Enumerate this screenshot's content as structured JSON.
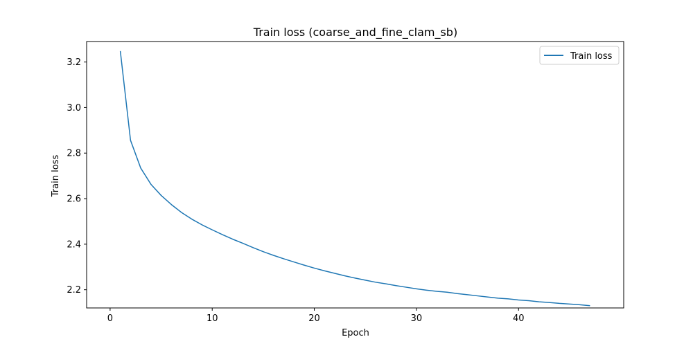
{
  "chart_data": {
    "type": "line",
    "title": "Train loss (coarse_and_fine_clam_sb)",
    "xlabel": "Epoch",
    "ylabel": "Train loss",
    "xlim": [
      -2.3,
      50.3
    ],
    "ylim": [
      2.12,
      3.29
    ],
    "xticks": [
      0,
      10,
      20,
      30,
      40
    ],
    "yticks": [
      2.2,
      2.4,
      2.6,
      2.8,
      3.0,
      3.2
    ],
    "grid": false,
    "legend": {
      "position": "top-right",
      "entries": [
        "Train loss"
      ]
    },
    "colors": {
      "series": "#1f77b4"
    },
    "series": [
      {
        "name": "Train loss",
        "x": [
          1,
          2,
          3,
          4,
          5,
          6,
          7,
          8,
          9,
          10,
          11,
          12,
          13,
          14,
          15,
          16,
          17,
          18,
          19,
          20,
          21,
          22,
          23,
          24,
          25,
          26,
          27,
          28,
          29,
          30,
          31,
          32,
          33,
          34,
          35,
          36,
          37,
          38,
          39,
          40,
          41,
          42,
          43,
          44,
          45,
          46,
          47
        ],
        "y": [
          3.248,
          2.856,
          2.734,
          2.663,
          2.614,
          2.574,
          2.539,
          2.51,
          2.485,
          2.463,
          2.442,
          2.422,
          2.404,
          2.385,
          2.367,
          2.351,
          2.336,
          2.322,
          2.308,
          2.295,
          2.283,
          2.272,
          2.261,
          2.251,
          2.242,
          2.233,
          2.226,
          2.218,
          2.211,
          2.204,
          2.198,
          2.193,
          2.189,
          2.183,
          2.178,
          2.173,
          2.168,
          2.163,
          2.16,
          2.155,
          2.152,
          2.147,
          2.144,
          2.14,
          2.137,
          2.134,
          2.13
        ]
      }
    ]
  }
}
